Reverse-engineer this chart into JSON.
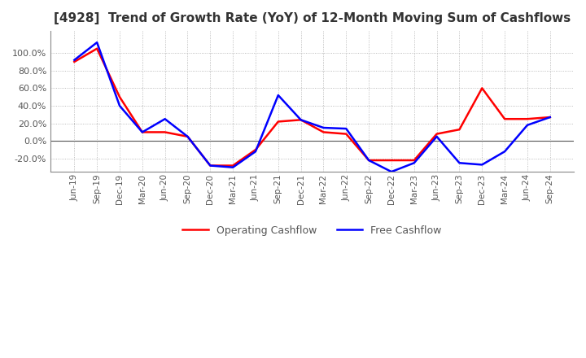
{
  "title": "[4928]  Trend of Growth Rate (YoY) of 12-Month Moving Sum of Cashflows",
  "title_fontsize": 11,
  "ylim": [
    -35,
    125
  ],
  "yticks": [
    -20,
    0,
    20,
    40,
    60,
    80,
    100
  ],
  "background_color": "#ffffff",
  "grid_color": "#aaaaaa",
  "x_labels": [
    "Jun-19",
    "Sep-19",
    "Dec-19",
    "Mar-20",
    "Jun-20",
    "Sep-20",
    "Dec-20",
    "Mar-21",
    "Jun-21",
    "Sep-21",
    "Dec-21",
    "Mar-22",
    "Jun-22",
    "Sep-22",
    "Dec-22",
    "Mar-23",
    "Jun-23",
    "Sep-23",
    "Dec-23",
    "Mar-24",
    "Jun-24",
    "Sep-24"
  ],
  "operating_cashflow": [
    90,
    105,
    50,
    10,
    10,
    5,
    -28,
    -28,
    -10,
    22,
    24,
    10,
    8,
    -22,
    -22,
    -22,
    8,
    13,
    60,
    25,
    25,
    27
  ],
  "free_cashflow": [
    92,
    112,
    40,
    10,
    25,
    5,
    -28,
    -30,
    -12,
    52,
    24,
    15,
    14,
    -22,
    -35,
    -25,
    5,
    -25,
    -27,
    -12,
    18,
    27
  ],
  "op_color": "#ff0000",
  "free_color": "#0000ff",
  "line_width": 1.8,
  "legend_labels": [
    "Operating Cashflow",
    "Free Cashflow"
  ]
}
